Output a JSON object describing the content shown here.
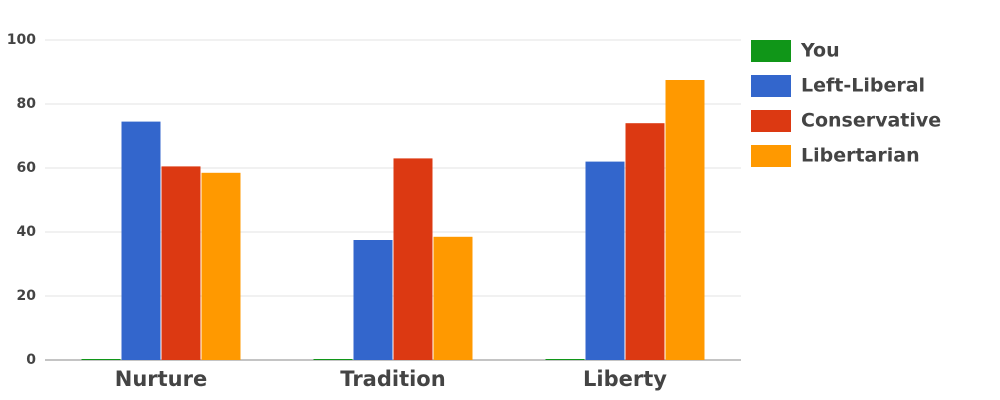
{
  "chart_data": {
    "type": "bar",
    "categories": [
      "Nurture",
      "Tradition",
      "Liberty"
    ],
    "series": [
      {
        "name": "You",
        "color": "#109618",
        "values": [
          0,
          0,
          0
        ]
      },
      {
        "name": "Left-Liberal",
        "color": "#3366cc",
        "values": [
          74.5,
          37.5,
          62
        ]
      },
      {
        "name": "Conservative",
        "color": "#dc3912",
        "values": [
          60.5,
          63,
          74
        ]
      },
      {
        "name": "Libertarian",
        "color": "#ff9900",
        "values": [
          58.5,
          38.5,
          87.5
        ]
      }
    ],
    "ylim": [
      0,
      100
    ],
    "yticks": [
      0,
      20,
      40,
      60,
      80,
      100
    ],
    "grid": true,
    "legend": "right"
  }
}
